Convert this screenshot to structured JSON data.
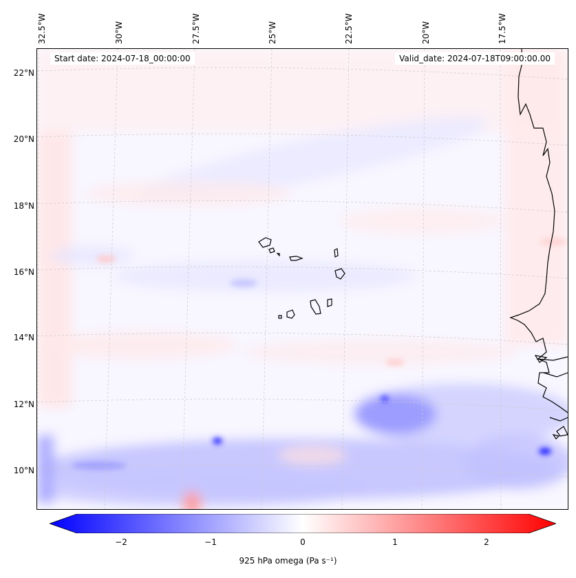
{
  "map": {
    "start_date_text": "Start date: 2024-07-18_00:00:00",
    "valid_date_text": "Valid_date: 2024-07-18T09:00:00.00",
    "lon_labels": [
      "32.5°W",
      "30°W",
      "27.5°W",
      "25°W",
      "22.5°W",
      "20°W",
      "17.5°W"
    ],
    "lat_labels": [
      "22°N",
      "20°N",
      "18°N",
      "16°N",
      "14°N",
      "12°N",
      "10°N"
    ],
    "colors": {
      "negative": "#0000ff",
      "positive": "#ff0000",
      "neutral": "#ffffff",
      "coastline": "#000000",
      "gridline": "#c8c8c8"
    }
  },
  "colorbar": {
    "tick_labels": [
      "−2",
      "−1",
      "0",
      "1",
      "2"
    ],
    "label": "925 hPa omega (Pa s⁻¹)"
  }
}
